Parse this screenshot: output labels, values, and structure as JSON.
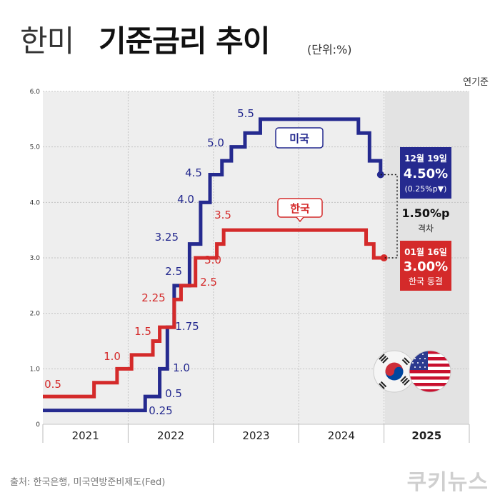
{
  "title": {
    "light": "한미",
    "bold": "기준금리 추이",
    "unit": "(단위:%)"
  },
  "basis_note": "연기준",
  "source": "출처: 한국은행, 미국연방준비제도(Fed)",
  "brand": "쿠키뉴스",
  "colors": {
    "us": "#252a8f",
    "kr": "#d42a2a",
    "plot_bg": "#eeeeee"
  },
  "chart_data": {
    "type": "line",
    "step": true,
    "title": "한미 기준금리 추이",
    "ylabel": "(단위:%)",
    "xlabel": "연기준",
    "ylim": [
      0,
      6.0
    ],
    "xlim": [
      2021,
      2026
    ],
    "y_ticks": [
      "0",
      "1.0",
      "2.0",
      "3.0",
      "4.0",
      "5.0",
      "6.0"
    ],
    "year_labels": [
      {
        "label": "2021",
        "bold": false
      },
      {
        "label": "2022",
        "bold": false
      },
      {
        "label": "2023",
        "bold": false
      },
      {
        "label": "2024",
        "bold": false
      },
      {
        "label": "2025",
        "bold": true
      }
    ],
    "series": [
      {
        "name": "미국",
        "color": "#252a8f",
        "points": [
          [
            2021.0,
            0.25
          ],
          [
            2022.2,
            0.5
          ],
          [
            2022.37,
            1.0
          ],
          [
            2022.46,
            1.75
          ],
          [
            2022.54,
            2.5
          ],
          [
            2022.72,
            3.25
          ],
          [
            2022.85,
            4.0
          ],
          [
            2022.96,
            4.5
          ],
          [
            2023.1,
            4.75
          ],
          [
            2023.21,
            5.0
          ],
          [
            2023.37,
            5.25
          ],
          [
            2023.55,
            5.5
          ],
          [
            2024.7,
            5.25
          ],
          [
            2024.83,
            4.75
          ],
          [
            2024.96,
            4.5
          ]
        ],
        "rate_labels": [
          "0.25",
          "0.5",
          "1.0",
          "1.75",
          "2.5",
          "3.25",
          "4.0",
          "4.5",
          "5.0",
          "5.5"
        ],
        "end_callout": {
          "date": "12월 19일",
          "value": "4.50%",
          "change": "(0.25%p▼)"
        }
      },
      {
        "name": "한국",
        "color": "#d42a2a",
        "points": [
          [
            2021.0,
            0.5
          ],
          [
            2021.6,
            0.75
          ],
          [
            2021.87,
            1.0
          ],
          [
            2022.04,
            1.25
          ],
          [
            2022.29,
            1.5
          ],
          [
            2022.37,
            1.75
          ],
          [
            2022.54,
            2.25
          ],
          [
            2022.62,
            2.5
          ],
          [
            2022.79,
            3.0
          ],
          [
            2023.04,
            3.25
          ],
          [
            2023.12,
            3.5
          ],
          [
            2024.79,
            3.25
          ],
          [
            2024.88,
            3.0
          ],
          [
            2025.0,
            3.0
          ]
        ],
        "rate_labels": [
          "0.5",
          "1.0",
          "1.5",
          "2.25",
          "2.5",
          "3.0",
          "3.5"
        ],
        "end_callout": {
          "date": "01월 16일",
          "value": "3.00%",
          "status": "한국 동결"
        }
      }
    ],
    "gap": {
      "value": "1.50%p",
      "label": "격차"
    }
  }
}
